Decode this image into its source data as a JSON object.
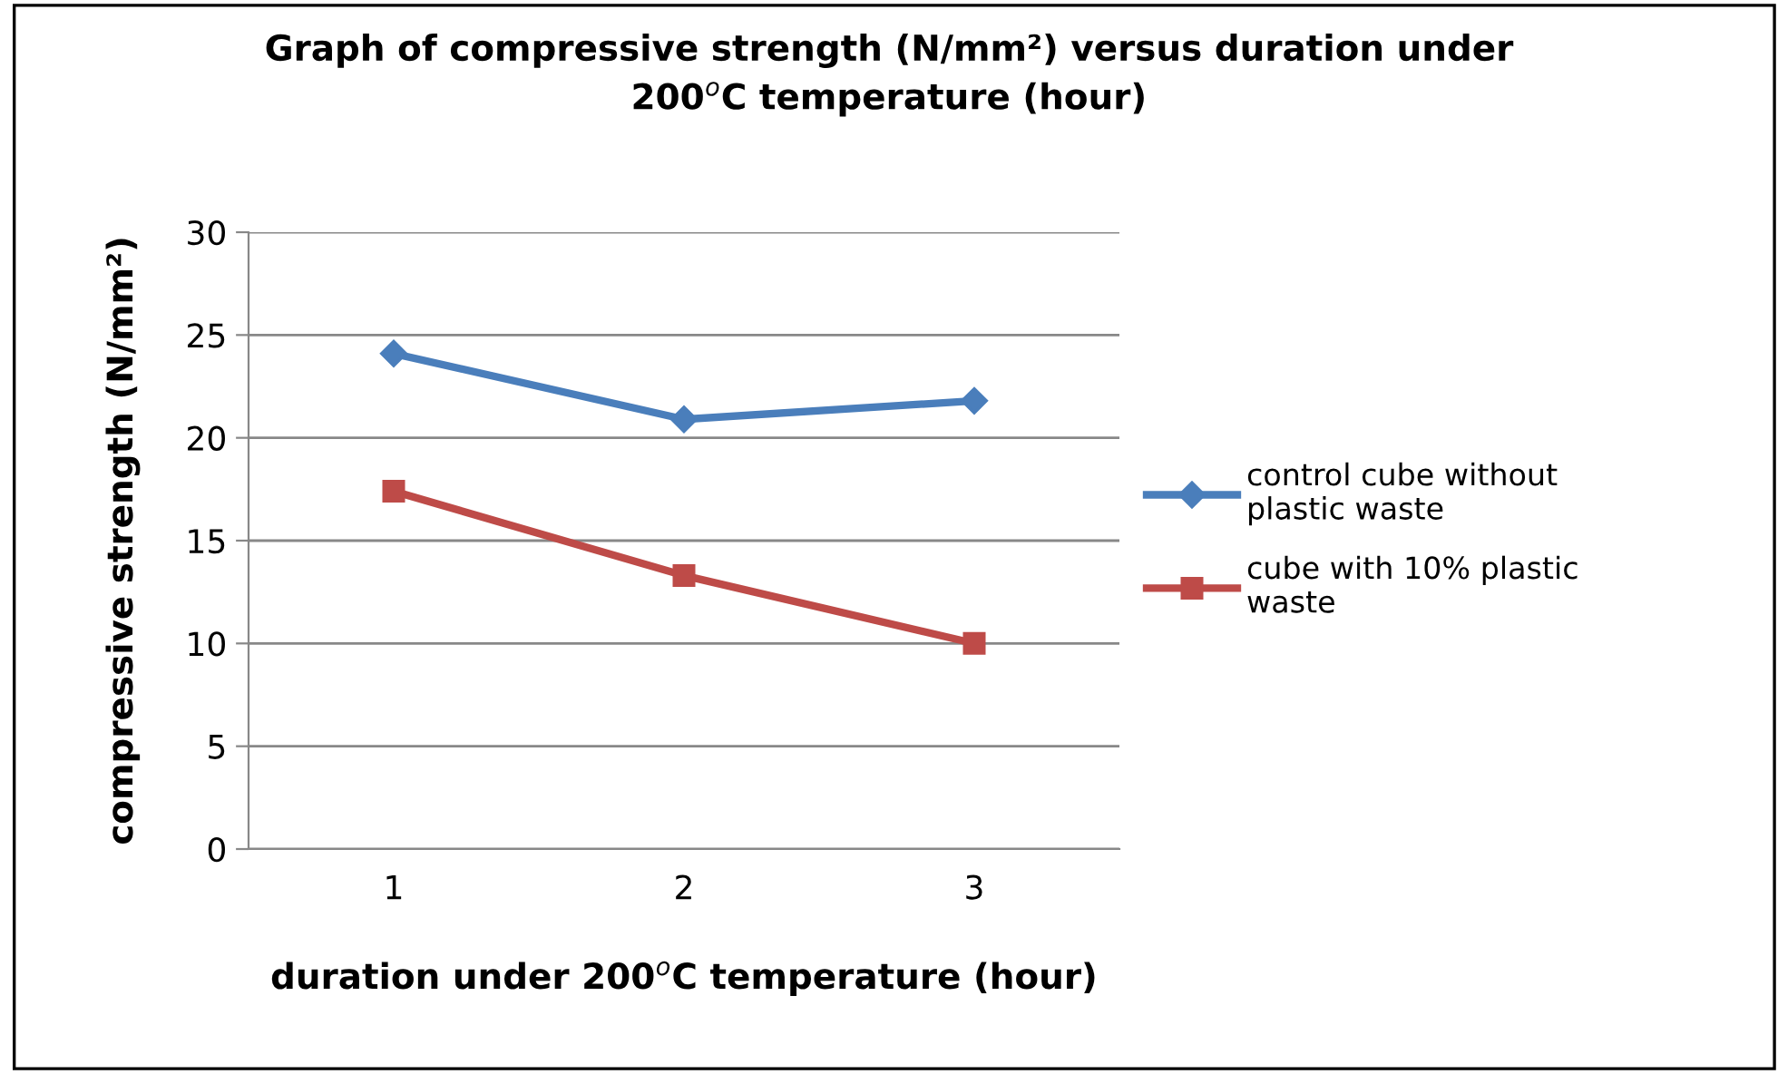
{
  "chart_data": {
    "type": "line",
    "title": "Graph of compressive strength (N/mm²) versus duration under\n200$^{o}$C temperature (hour)",
    "xlabel": "duration under 200$^{o}$C temperature (hour)",
    "ylabel": "compressive strength (N/mm²)",
    "categories": [
      "1",
      "2",
      "3"
    ],
    "series": [
      {
        "name": "control cube without plastic waste",
        "color": "#4a7ebb",
        "marker": "diamond",
        "values": [
          24.1,
          20.9,
          21.8
        ]
      },
      {
        "name": "cube with 10% plastic waste",
        "color": "#be4b48",
        "marker": "square",
        "values": [
          17.4,
          13.3,
          10.0
        ]
      }
    ],
    "ylim": [
      0,
      30
    ],
    "yticks": [
      0,
      5,
      10,
      15,
      20,
      25,
      30
    ],
    "grid": "y",
    "legend": "right",
    "line_style": "solid"
  }
}
